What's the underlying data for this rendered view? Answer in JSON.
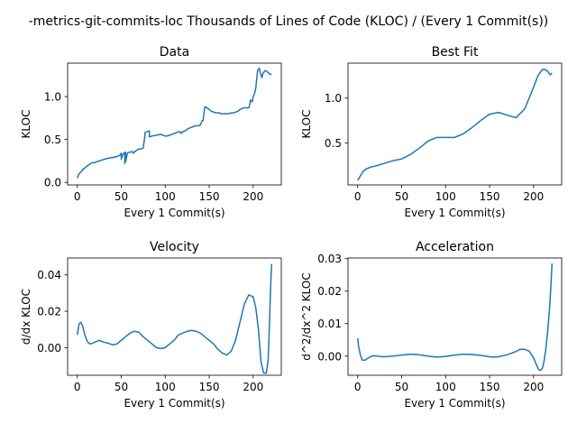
{
  "suptitle": "-metrics-git-commits-loc Thousands of Lines of Code (KLOC) / (Every 1 Commit(s))",
  "line_color": "#1f77b4",
  "chart_data": [
    {
      "type": "line",
      "title": "Data",
      "xlabel": "Every 1 Commit(s)",
      "ylabel": "KLOC",
      "xlim": [
        -11,
        232
      ],
      "ylim": [
        -0.03,
        1.39
      ],
      "xticks": [
        0,
        50,
        100,
        150,
        200
      ],
      "xtick_labels": [
        "0",
        "50",
        "100",
        "150",
        "200"
      ],
      "yticks": [
        0.0,
        0.5,
        1.0
      ],
      "ytick_labels": [
        "0.0",
        "0.5",
        "1.0"
      ],
      "series": [
        {
          "x": [
            0,
            2,
            3,
            5,
            7,
            9,
            11,
            14,
            17,
            20,
            22,
            25,
            28,
            31,
            35,
            40,
            45,
            49,
            50,
            50,
            52,
            54,
            54,
            55,
            55,
            57,
            58,
            60,
            62,
            63,
            64,
            65,
            66,
            68,
            70,
            72,
            75,
            77,
            77,
            79,
            82,
            82,
            85,
            90,
            95,
            100,
            102,
            105,
            108,
            110,
            113,
            115,
            117,
            118,
            120,
            122,
            123,
            125,
            127,
            129,
            132,
            135,
            138,
            140,
            142,
            143,
            145,
            146,
            147,
            149,
            152,
            155,
            158,
            160,
            162,
            163,
            165,
            167,
            170,
            172,
            175,
            178,
            180,
            183,
            185,
            187,
            190,
            193,
            195,
            196,
            197,
            199,
            200,
            201,
            202,
            203,
            204,
            205,
            206,
            207,
            208,
            209,
            210,
            211,
            212,
            213,
            215,
            217,
            219,
            221
          ],
          "y": [
            0.05,
            0.1,
            0.11,
            0.13,
            0.16,
            0.17,
            0.19,
            0.21,
            0.23,
            0.23,
            0.24,
            0.25,
            0.26,
            0.27,
            0.28,
            0.29,
            0.3,
            0.32,
            0.34,
            0.27,
            0.33,
            0.35,
            0.22,
            0.35,
            0.24,
            0.34,
            0.35,
            0.35,
            0.36,
            0.35,
            0.34,
            0.36,
            0.36,
            0.38,
            0.39,
            0.39,
            0.4,
            0.55,
            0.58,
            0.59,
            0.6,
            0.53,
            0.54,
            0.55,
            0.56,
            0.54,
            0.54,
            0.55,
            0.56,
            0.57,
            0.58,
            0.59,
            0.59,
            0.57,
            0.59,
            0.6,
            0.6,
            0.62,
            0.63,
            0.64,
            0.65,
            0.66,
            0.66,
            0.67,
            0.72,
            0.72,
            0.88,
            0.88,
            0.87,
            0.86,
            0.83,
            0.82,
            0.81,
            0.81,
            0.81,
            0.8,
            0.8,
            0.8,
            0.8,
            0.8,
            0.81,
            0.81,
            0.82,
            0.83,
            0.85,
            0.86,
            0.87,
            0.87,
            0.87,
            0.9,
            0.96,
            0.94,
            1.0,
            1.02,
            1.05,
            1.1,
            1.2,
            1.3,
            1.32,
            1.33,
            1.28,
            1.25,
            1.22,
            1.27,
            1.28,
            1.3,
            1.3,
            1.28,
            1.26,
            1.26
          ]
        }
      ]
    },
    {
      "type": "line",
      "title": "Best Fit",
      "xlabel": "Every 1 Commit(s)",
      "ylabel": "KLOC",
      "xlim": [
        -11,
        232
      ],
      "ylim": [
        0.03,
        1.39
      ],
      "xticks": [
        0,
        50,
        100,
        150,
        200
      ],
      "xtick_labels": [
        "0",
        "50",
        "100",
        "150",
        "200"
      ],
      "yticks": [
        0.5,
        1.0
      ],
      "ytick_labels": [
        "0.5",
        "1.0"
      ],
      "series": [
        {
          "x": [
            0,
            3,
            6,
            10,
            15,
            20,
            30,
            40,
            50,
            60,
            70,
            80,
            90,
            100,
            110,
            120,
            130,
            140,
            150,
            160,
            170,
            180,
            190,
            200,
            205,
            210,
            213,
            216,
            219,
            221
          ],
          "y": [
            0.08,
            0.13,
            0.18,
            0.21,
            0.23,
            0.24,
            0.27,
            0.3,
            0.32,
            0.37,
            0.44,
            0.52,
            0.56,
            0.56,
            0.56,
            0.6,
            0.67,
            0.75,
            0.82,
            0.84,
            0.81,
            0.78,
            0.88,
            1.12,
            1.25,
            1.32,
            1.32,
            1.3,
            1.26,
            1.28
          ]
        }
      ]
    },
    {
      "type": "line",
      "title": "Velocity",
      "xlabel": "Every 1 Commit(s)",
      "ylabel": "d/dx KLOC",
      "xlim": [
        -11,
        232
      ],
      "ylim": [
        -0.0152,
        0.0493
      ],
      "xticks": [
        0,
        50,
        100,
        150,
        200
      ],
      "xtick_labels": [
        "0",
        "50",
        "100",
        "150",
        "200"
      ],
      "yticks": [
        0.0,
        0.02,
        0.04
      ],
      "ytick_labels": [
        "0.00",
        "0.02",
        "0.04"
      ],
      "series": [
        {
          "x": [
            0,
            2,
            4,
            6,
            8,
            10,
            12,
            15,
            20,
            25,
            30,
            35,
            40,
            45,
            50,
            55,
            60,
            65,
            70,
            75,
            80,
            85,
            90,
            95,
            100,
            105,
            110,
            115,
            120,
            125,
            130,
            135,
            140,
            145,
            150,
            155,
            160,
            165,
            170,
            175,
            180,
            185,
            190,
            195,
            200,
            203,
            206,
            209,
            212,
            215,
            217,
            218,
            219,
            220,
            221
          ],
          "y": [
            0.007,
            0.013,
            0.014,
            0.012,
            0.008,
            0.005,
            0.003,
            0.002,
            0.003,
            0.004,
            0.003,
            0.0025,
            0.0015,
            0.002,
            0.004,
            0.006,
            0.008,
            0.009,
            0.0085,
            0.006,
            0.004,
            0.002,
            0.0,
            -0.0005,
            0.0,
            0.002,
            0.004,
            0.007,
            0.008,
            0.009,
            0.0095,
            0.009,
            0.008,
            0.006,
            0.004,
            0.002,
            -0.001,
            -0.003,
            -0.004,
            -0.002,
            0.004,
            0.014,
            0.024,
            0.029,
            0.028,
            0.022,
            0.01,
            -0.008,
            -0.014,
            -0.014,
            -0.007,
            0.005,
            0.02,
            0.035,
            0.046
          ]
        }
      ]
    },
    {
      "type": "line",
      "title": "Acceleration",
      "xlabel": "Every 1 Commit(s)",
      "ylabel": "d^2/dx^2 KLOC",
      "xlim": [
        -11,
        232
      ],
      "ylim": [
        -0.0059,
        0.0302
      ],
      "xticks": [
        0,
        50,
        100,
        150,
        200
      ],
      "xtick_labels": [
        "0",
        "50",
        "100",
        "150",
        "200"
      ],
      "yticks": [
        0.0,
        0.01,
        0.02,
        0.03
      ],
      "ytick_labels": [
        "0.00",
        "0.01",
        "0.02",
        "0.03"
      ],
      "series": [
        {
          "x": [
            0,
            1,
            3,
            5,
            8,
            12,
            16,
            20,
            25,
            30,
            40,
            50,
            60,
            70,
            80,
            90,
            100,
            110,
            120,
            130,
            140,
            150,
            155,
            160,
            170,
            180,
            185,
            190,
            195,
            200,
            203,
            206,
            208,
            210,
            212,
            214,
            216,
            218,
            219,
            220,
            221
          ],
          "y": [
            0.0055,
            0.003,
            0.0005,
            -0.0012,
            -0.0013,
            -0.0006,
            0.0,
            0.0001,
            -0.0001,
            -0.0002,
            0.0,
            0.0003,
            0.0006,
            0.0004,
            0.0,
            -0.0003,
            -0.0001,
            0.0003,
            0.0006,
            0.0005,
            0.0002,
            -0.0002,
            -0.0003,
            -0.0002,
            0.0004,
            0.0014,
            0.0021,
            0.0021,
            0.0015,
            -0.0005,
            -0.0025,
            -0.0042,
            -0.0044,
            -0.0038,
            -0.0015,
            0.0022,
            0.0075,
            0.0138,
            0.018,
            0.023,
            0.0285
          ]
        }
      ]
    }
  ]
}
